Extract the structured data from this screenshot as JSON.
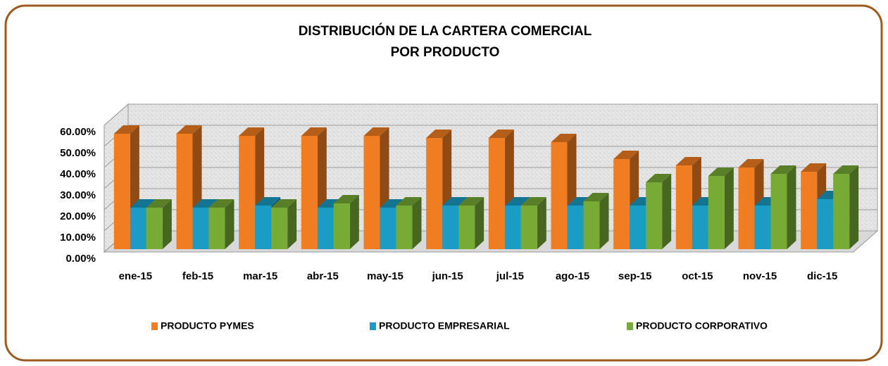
{
  "chart_data": {
    "type": "bar3d",
    "title": [
      "DISTRIBUCIÓN DE LA CARTERA COMERCIAL",
      "POR PRODUCTO"
    ],
    "categories": [
      "ene-15",
      "feb-15",
      "mar-15",
      "abr-15",
      "may-15",
      "jun-15",
      "jul-15",
      "ago-15",
      "sep-15",
      "oct-15",
      "nov-15",
      "dic-15"
    ],
    "series": [
      {
        "name": "PRODUCTO PYMES",
        "color": "#f07d22",
        "values": [
          56,
          56,
          55,
          55,
          55,
          54,
          54,
          52,
          44,
          41,
          40,
          38
        ]
      },
      {
        "name": "PRODUCTO EMPRESARIAL",
        "color": "#1b9cc4",
        "values": [
          21,
          21,
          22,
          21,
          21,
          22,
          22,
          22,
          22,
          22,
          22,
          25
        ]
      },
      {
        "name": "PRODUCTO CORPORATIVO",
        "color": "#77ab35",
        "values": [
          21,
          21,
          21,
          23,
          22,
          22,
          22,
          24,
          33,
          36,
          37,
          37
        ]
      }
    ],
    "ylim": [
      0,
      60
    ],
    "yticks": [
      {
        "value": 0,
        "label": "0.00%"
      },
      {
        "value": 10,
        "label": "10.00%"
      },
      {
        "value": 20,
        "label": "20.00%"
      },
      {
        "value": 30,
        "label": "30.00%"
      },
      {
        "value": 40,
        "label": "40.00%"
      },
      {
        "value": 50,
        "label": "50.00%"
      },
      {
        "value": 60,
        "label": "60.00%"
      }
    ],
    "grid": true,
    "legend": "bottom"
  }
}
